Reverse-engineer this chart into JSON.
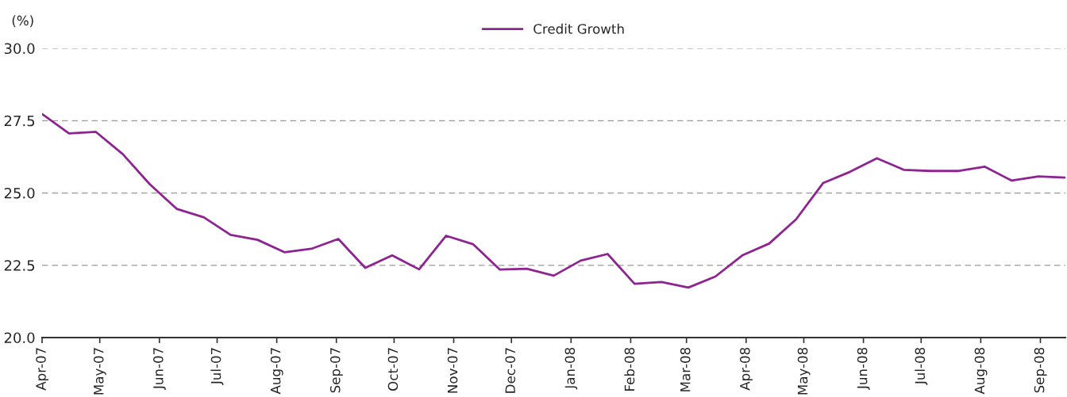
{
  "chart_data": {
    "type": "line",
    "ylabel": "(%)",
    "x": [
      "2007-04-01",
      "2007-04-15",
      "2007-04-29",
      "2007-05-13",
      "2007-05-27",
      "2007-06-10",
      "2007-06-24",
      "2007-07-08",
      "2007-07-22",
      "2007-08-05",
      "2007-08-19",
      "2007-09-02",
      "2007-09-16",
      "2007-09-30",
      "2007-10-14",
      "2007-10-28",
      "2007-11-11",
      "2007-11-25",
      "2007-12-09",
      "2007-12-23",
      "2008-01-06",
      "2008-01-20",
      "2008-02-03",
      "2008-02-17",
      "2008-03-02",
      "2008-03-16",
      "2008-03-30",
      "2008-04-13",
      "2008-04-27",
      "2008-05-11",
      "2008-05-25",
      "2008-06-08",
      "2008-06-22",
      "2008-07-06",
      "2008-07-20",
      "2008-08-03",
      "2008-08-17",
      "2008-08-31",
      "2008-09-14"
    ],
    "series": [
      {
        "name": "Credit Growth",
        "color": "#8e2491",
        "values": [
          27.73,
          27.06,
          27.11,
          26.34,
          25.3,
          24.45,
          24.16,
          23.55,
          23.38,
          22.95,
          23.07,
          23.41,
          22.41,
          22.84,
          22.36,
          23.52,
          23.23,
          22.35,
          22.38,
          22.14,
          22.66,
          22.89,
          21.86,
          21.92,
          21.73,
          22.11,
          22.84,
          23.25,
          24.09,
          25.34,
          25.73,
          26.2,
          25.8,
          25.76,
          25.76,
          25.91,
          25.43,
          25.57,
          25.53
        ]
      }
    ],
    "xlim": [
      "2007-04-01",
      "2008-09-14"
    ],
    "xticks": [
      {
        "value": "2007-04-01",
        "label": "Apr-07"
      },
      {
        "value": "2007-05-01",
        "label": "May-07"
      },
      {
        "value": "2007-06-01",
        "label": "Jun-07"
      },
      {
        "value": "2007-07-01",
        "label": "Jul-07"
      },
      {
        "value": "2007-08-01",
        "label": "Aug-07"
      },
      {
        "value": "2007-09-01",
        "label": "Sep-07"
      },
      {
        "value": "2007-10-01",
        "label": "Oct-07"
      },
      {
        "value": "2007-11-01",
        "label": "Nov-07"
      },
      {
        "value": "2007-12-01",
        "label": "Dec-07"
      },
      {
        "value": "2008-01-01",
        "label": "Jan-08"
      },
      {
        "value": "2008-02-01",
        "label": "Feb-08"
      },
      {
        "value": "2008-03-01",
        "label": "Mar-08"
      },
      {
        "value": "2008-04-01",
        "label": "Apr-08"
      },
      {
        "value": "2008-05-01",
        "label": "May-08"
      },
      {
        "value": "2008-06-01",
        "label": "Jun-08"
      },
      {
        "value": "2008-07-01",
        "label": "Jul-08"
      },
      {
        "value": "2008-08-01",
        "label": "Aug-08"
      },
      {
        "value": "2008-09-01",
        "label": "Sep-08"
      }
    ],
    "ylim": [
      20,
      30
    ],
    "yticks": [
      {
        "value": 20,
        "label": "20.0"
      },
      {
        "value": 22.5,
        "label": "22.5"
      },
      {
        "value": 25,
        "label": "25.0"
      },
      {
        "value": 27.5,
        "label": "27.5"
      },
      {
        "value": 30,
        "label": "30.0"
      }
    ],
    "grid": "y",
    "legend": "top",
    "marker": "none",
    "line_style": "solid"
  }
}
